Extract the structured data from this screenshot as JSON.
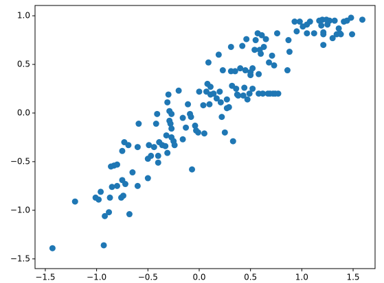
{
  "chart_data": {
    "type": "scatter",
    "color": "#1f77b4",
    "xlim": [
      -1.6,
      1.714
    ],
    "ylim": [
      -1.6,
      1.106
    ],
    "xticks": [
      {
        "value": -1.5,
        "label": "−1.5"
      },
      {
        "value": -1,
        "label": "−1.0"
      },
      {
        "value": -0.5,
        "label": "−0.5"
      },
      {
        "value": 0,
        "label": "0.0"
      },
      {
        "value": 0.5,
        "label": "0.5"
      },
      {
        "value": 1,
        "label": "1.0"
      },
      {
        "value": 1.5,
        "label": "1.5"
      }
    ],
    "yticks": [
      {
        "value": -1.5,
        "label": "−1.5"
      },
      {
        "value": -1,
        "label": "−1.0"
      },
      {
        "value": -0.5,
        "label": "−0.5"
      },
      {
        "value": 0,
        "label": "0.0"
      },
      {
        "value": 0.5,
        "label": "0.5"
      },
      {
        "value": 1,
        "label": "1.0"
      }
    ],
    "x": [
      -1.43,
      -1.21,
      -1.01,
      -0.98,
      -0.96,
      -0.93,
      -0.92,
      -0.88,
      -0.87,
      -0.86,
      -0.85,
      -0.83,
      -0.8,
      -0.8,
      -0.76,
      -0.75,
      -0.75,
      -0.74,
      -0.73,
      -0.72,
      -0.69,
      -0.68,
      -0.65,
      -0.6,
      -0.6,
      -0.59,
      -0.5,
      -0.5,
      -0.49,
      -0.47,
      -0.44,
      -0.42,
      -0.41,
      -0.4,
      -0.4,
      -0.39,
      -0.36,
      -0.33,
      -0.32,
      -0.31,
      -0.31,
      -0.3,
      -0.29,
      -0.29,
      -0.28,
      -0.27,
      -0.27,
      -0.25,
      -0.24,
      -0.27,
      -0.2,
      -0.16,
      -0.16,
      -0.13,
      -0.11,
      -0.09,
      -0.08,
      -0.07,
      -0.04,
      -0.03,
      -0.01,
      0,
      0.04,
      0.05,
      0.07,
      0.08,
      0.09,
      0.1,
      0.11,
      0.11,
      0.14,
      0.17,
      0.19,
      0.2,
      0.21,
      0.22,
      0.23,
      0.25,
      0.27,
      0.27,
      0.29,
      0.31,
      0.31,
      0.32,
      0.33,
      0.35,
      0.36,
      0.37,
      0.38,
      0.4,
      0.42,
      0.43,
      0.44,
      0.45,
      0.46,
      0.47,
      0.49,
      0.5,
      0.5,
      0.52,
      0.52,
      0.54,
      0.55,
      0.57,
      0.58,
      0.58,
      0.59,
      0.6,
      0.61,
      0.62,
      0.63,
      0.65,
      0.67,
      0.68,
      0.69,
      0.71,
      0.72,
      0.73,
      0.74,
      0.76,
      0.77,
      0.87,
      0.88,
      0.86,
      0.93,
      0.95,
      0.98,
      1.01,
      1.05,
      1.05,
      1.08,
      1.12,
      1.17,
      1.19,
      1.2,
      1.21,
      1.21,
      1.21,
      1.25,
      1.27,
      1.3,
      1.32,
      1.34,
      1.36,
      1.37,
      1.38,
      1.41,
      1.44,
      1.48,
      1.49,
      1.59,
      1.24
    ],
    "values": [
      -1.39,
      -0.91,
      -0.87,
      -0.89,
      -0.81,
      -1.36,
      -1.06,
      -1.02,
      -0.87,
      -0.55,
      -0.76,
      -0.54,
      -0.75,
      -0.53,
      -0.87,
      -0.69,
      -0.39,
      -0.85,
      -0.3,
      -0.73,
      -0.33,
      -1.04,
      -0.61,
      -0.75,
      -0.35,
      -0.11,
      -0.47,
      -0.67,
      -0.33,
      -0.44,
      -0.35,
      -0.11,
      -0.01,
      -0.44,
      -0.51,
      -0.3,
      -0.33,
      -0.34,
      -0.23,
      -0.41,
      0.11,
      0.19,
      0.02,
      -0.08,
      -0.11,
      -0.16,
      -0.25,
      -0.29,
      -0.33,
      -0.01,
      0.23,
      -0.27,
      -0.05,
      -0.15,
      0.09,
      -0.01,
      -0.04,
      -0.58,
      -0.13,
      -0.18,
      -0.2,
      0.22,
      0.08,
      -0.21,
      0.22,
      0.3,
      0.52,
      0.09,
      0.19,
      0.27,
      0.2,
      0.15,
      0.6,
      0.22,
      0.11,
      -0.04,
      0.44,
      -0.2,
      0.05,
      0.14,
      0.06,
      0.68,
      0.43,
      0.28,
      -0.29,
      0.43,
      0.25,
      0.19,
      0.18,
      0.46,
      0.69,
      0.18,
      0.26,
      0.44,
      0.76,
      0.14,
      0.2,
      0.39,
      0.42,
      0.46,
      0.25,
      0.65,
      0.75,
      0.82,
      0.4,
      0.2,
      0.65,
      0.61,
      0.8,
      0.2,
      0.68,
      0.76,
      0.2,
      0.52,
      0.2,
      0.59,
      0.2,
      0.49,
      0.2,
      0.82,
      0.2,
      0.75,
      0.63,
      0.44,
      0.94,
      0.84,
      0.94,
      0.89,
      0.91,
      0.82,
      0.94,
      0.82,
      0.95,
      0.9,
      0.96,
      0.83,
      0.7,
      0.81,
      0.91,
      0.95,
      0.77,
      0.95,
      0.81,
      0.87,
      0.82,
      0.81,
      0.94,
      0.95,
      0.98,
      0.81,
      0.96,
      0.96
    ]
  }
}
